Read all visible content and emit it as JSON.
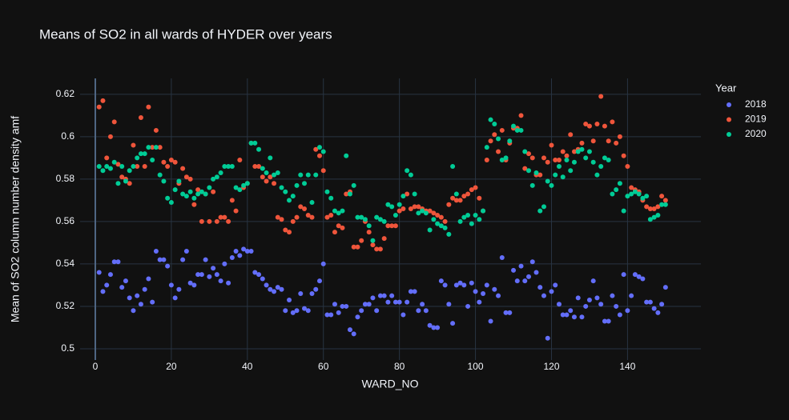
{
  "chart_data": {
    "type": "scatter",
    "title": "Means of SO2 in all wards of HYDER over years",
    "x_label": "WARD_NO",
    "y_label": "Mean of SO2 column number density amf",
    "legend_title": "Year",
    "legend": "right",
    "grid": true,
    "xlim": [
      -4,
      159.3
    ],
    "ylim": [
      0.4947,
      0.6275
    ],
    "xticks": [
      0,
      20,
      40,
      60,
      80,
      100,
      120,
      140
    ],
    "yticks": [
      0.5,
      0.52,
      0.54,
      0.56,
      0.58,
      0.6,
      0.62
    ],
    "x": [
      1,
      2,
      3,
      4,
      5,
      6,
      7,
      8,
      9,
      10,
      11,
      12,
      13,
      14,
      15,
      16,
      17,
      18,
      19,
      20,
      21,
      22,
      23,
      24,
      25,
      26,
      27,
      28,
      29,
      30,
      31,
      32,
      33,
      34,
      35,
      36,
      37,
      38,
      39,
      40,
      41,
      42,
      43,
      44,
      45,
      46,
      47,
      48,
      49,
      50,
      51,
      52,
      53,
      54,
      55,
      56,
      57,
      58,
      59,
      60,
      61,
      62,
      63,
      64,
      65,
      66,
      67,
      68,
      69,
      70,
      71,
      72,
      73,
      74,
      75,
      76,
      77,
      78,
      79,
      80,
      81,
      82,
      83,
      84,
      85,
      86,
      87,
      88,
      89,
      90,
      91,
      92,
      93,
      94,
      95,
      96,
      97,
      98,
      99,
      100,
      101,
      102,
      103,
      104,
      105,
      106,
      107,
      108,
      109,
      110,
      111,
      112,
      113,
      114,
      115,
      116,
      117,
      118,
      119,
      120,
      121,
      122,
      123,
      124,
      125,
      126,
      127,
      128,
      129,
      130,
      131,
      132,
      133,
      134,
      135,
      136,
      137,
      138,
      139,
      140,
      141,
      142,
      143,
      144,
      145,
      146,
      147,
      148,
      149,
      150
    ],
    "series": [
      {
        "name": "2018",
        "color": "#636efa",
        "values": [
          0.536,
          0.527,
          0.53,
          0.535,
          0.541,
          0.541,
          0.529,
          0.532,
          0.524,
          0.518,
          0.525,
          0.521,
          0.528,
          0.533,
          0.522,
          0.546,
          0.542,
          0.542,
          0.539,
          0.53,
          0.524,
          0.528,
          0.542,
          0.546,
          0.531,
          0.53,
          0.535,
          0.535,
          0.542,
          0.534,
          0.538,
          0.535,
          0.532,
          0.54,
          0.531,
          0.543,
          0.546,
          0.544,
          0.547,
          0.546,
          0.546,
          0.536,
          0.535,
          0.533,
          0.53,
          0.528,
          0.527,
          0.529,
          0.528,
          0.518,
          0.523,
          0.517,
          0.518,
          0.526,
          0.519,
          0.518,
          0.526,
          0.528,
          0.532,
          0.54,
          0.516,
          0.516,
          0.521,
          0.517,
          0.52,
          0.52,
          0.509,
          0.507,
          0.515,
          0.518,
          0.521,
          0.521,
          0.524,
          0.518,
          0.525,
          0.525,
          0.522,
          0.525,
          0.522,
          0.522,
          0.516,
          0.522,
          0.527,
          0.527,
          0.518,
          0.521,
          0.518,
          0.511,
          0.51,
          0.51,
          0.532,
          0.53,
          0.521,
          0.512,
          0.53,
          0.531,
          0.53,
          0.52,
          0.531,
          0.527,
          0.522,
          0.526,
          0.53,
          0.513,
          0.528,
          0.525,
          0.543,
          0.517,
          0.517,
          0.537,
          0.532,
          0.539,
          0.532,
          0.534,
          0.541,
          0.536,
          0.529,
          0.525,
          0.505,
          0.527,
          0.53,
          0.521,
          0.516,
          0.516,
          0.518,
          0.515,
          0.524,
          0.515,
          0.52,
          0.523,
          0.532,
          0.524,
          0.521,
          0.513,
          0.513,
          0.525,
          0.52,
          0.516,
          0.535,
          0.518,
          0.525,
          0.535,
          0.534,
          0.533,
          0.522,
          0.522,
          0.519,
          0.517,
          0.521,
          0.529
        ]
      },
      {
        "name": "2019",
        "color": "#ef553b",
        "values": [
          0.614,
          0.617,
          0.59,
          0.6,
          0.607,
          0.587,
          0.581,
          0.58,
          0.578,
          0.596,
          0.586,
          0.609,
          0.586,
          0.614,
          0.595,
          0.603,
          0.595,
          0.588,
          0.586,
          0.589,
          0.588,
          0.578,
          0.585,
          0.581,
          0.58,
          0.568,
          0.575,
          0.56,
          0.573,
          0.56,
          0.574,
          0.56,
          0.562,
          0.562,
          0.56,
          0.57,
          0.565,
          0.589,
          0.576,
          0.578,
          0.597,
          0.586,
          0.586,
          0.581,
          0.579,
          0.581,
          0.578,
          0.562,
          0.561,
          0.556,
          0.555,
          0.56,
          0.562,
          0.567,
          0.566,
          0.563,
          0.562,
          0.594,
          0.591,
          0.584,
          0.562,
          0.563,
          0.555,
          0.558,
          0.557,
          0.573,
          0.574,
          0.548,
          0.548,
          0.551,
          0.56,
          0.555,
          0.549,
          0.547,
          0.547,
          0.552,
          0.558,
          0.558,
          0.558,
          0.565,
          0.566,
          0.573,
          0.566,
          0.567,
          0.567,
          0.566,
          0.565,
          0.565,
          0.564,
          0.563,
          0.562,
          0.56,
          0.568,
          0.571,
          0.57,
          0.57,
          0.572,
          0.573,
          0.575,
          0.576,
          0.571,
          0.565,
          0.589,
          0.598,
          0.601,
          0.593,
          0.603,
          0.589,
          0.597,
          0.604,
          0.604,
          0.61,
          0.585,
          0.592,
          0.59,
          0.582,
          0.582,
          0.59,
          0.588,
          0.596,
          0.589,
          0.589,
          0.593,
          0.591,
          0.601,
          0.593,
          0.594,
          0.597,
          0.606,
          0.605,
          0.598,
          0.606,
          0.619,
          0.605,
          0.598,
          0.607,
          0.597,
          0.6,
          0.591,
          0.586,
          0.576,
          0.575,
          0.574,
          0.57,
          0.567,
          0.566,
          0.566,
          0.567,
          0.572,
          0.57
        ]
      },
      {
        "name": "2020",
        "color": "#00cc96",
        "values": [
          0.586,
          0.584,
          0.586,
          0.585,
          0.588,
          0.578,
          0.586,
          0.579,
          0.584,
          0.586,
          0.59,
          0.592,
          0.592,
          0.595,
          0.589,
          0.595,
          0.582,
          0.579,
          0.571,
          0.569,
          0.575,
          0.579,
          0.573,
          0.572,
          0.574,
          0.571,
          0.573,
          0.574,
          0.573,
          0.576,
          0.58,
          0.581,
          0.583,
          0.586,
          0.586,
          0.586,
          0.576,
          0.575,
          0.577,
          0.578,
          0.597,
          0.597,
          0.594,
          0.585,
          0.583,
          0.59,
          0.582,
          0.583,
          0.576,
          0.574,
          0.57,
          0.572,
          0.577,
          0.582,
          0.578,
          0.582,
          0.569,
          0.582,
          0.595,
          0.593,
          0.574,
          0.571,
          0.565,
          0.564,
          0.565,
          0.591,
          0.573,
          0.577,
          0.562,
          0.562,
          0.561,
          0.558,
          0.551,
          0.562,
          0.561,
          0.56,
          0.568,
          0.567,
          0.563,
          0.568,
          0.572,
          0.584,
          0.582,
          0.573,
          0.564,
          0.565,
          0.564,
          0.556,
          0.561,
          0.559,
          0.558,
          0.557,
          0.554,
          0.586,
          0.573,
          0.56,
          0.562,
          0.563,
          0.559,
          0.563,
          0.561,
          0.565,
          0.595,
          0.608,
          0.606,
          0.599,
          0.589,
          0.59,
          0.598,
          0.605,
          0.603,
          0.603,
          0.593,
          0.584,
          0.577,
          0.583,
          0.565,
          0.567,
          0.579,
          0.577,
          0.582,
          0.586,
          0.581,
          0.589,
          0.584,
          0.588,
          0.593,
          0.594,
          0.59,
          0.593,
          0.588,
          0.582,
          0.586,
          0.59,
          0.589,
          0.573,
          0.575,
          0.578,
          0.565,
          0.572,
          0.573,
          0.574,
          0.573,
          0.571,
          0.572,
          0.561,
          0.562,
          0.563,
          0.568,
          0.568
        ]
      }
    ]
  }
}
